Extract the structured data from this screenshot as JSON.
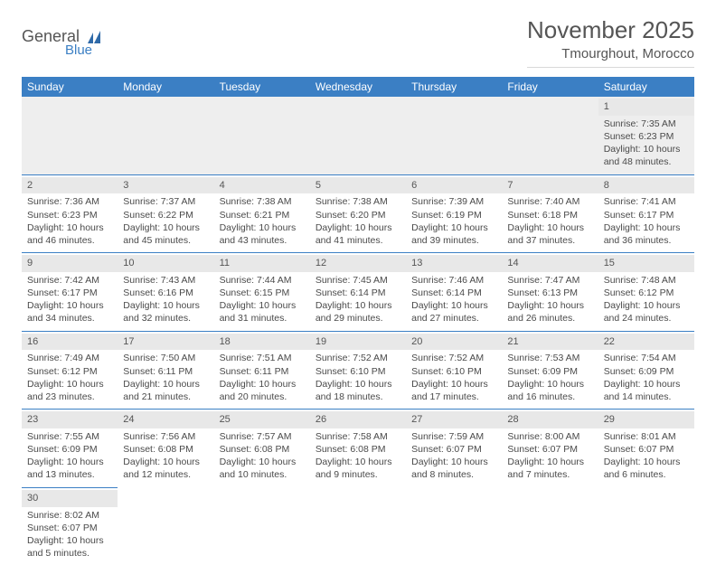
{
  "brand": {
    "word1": "General",
    "word2": "Blue"
  },
  "title": "November 2025",
  "location": "Tmourghout, Morocco",
  "colors": {
    "header_bg": "#3b7fc4",
    "daynum_bg": "#e8e8e8",
    "text": "#4a4a4a"
  },
  "weekdays": [
    "Sunday",
    "Monday",
    "Tuesday",
    "Wednesday",
    "Thursday",
    "Friday",
    "Saturday"
  ],
  "weeks": [
    [
      null,
      null,
      null,
      null,
      null,
      null,
      {
        "n": "1",
        "sunrise": "Sunrise: 7:35 AM",
        "sunset": "Sunset: 6:23 PM",
        "day1": "Daylight: 10 hours",
        "day2": "and 48 minutes."
      }
    ],
    [
      {
        "n": "2",
        "sunrise": "Sunrise: 7:36 AM",
        "sunset": "Sunset: 6:23 PM",
        "day1": "Daylight: 10 hours",
        "day2": "and 46 minutes."
      },
      {
        "n": "3",
        "sunrise": "Sunrise: 7:37 AM",
        "sunset": "Sunset: 6:22 PM",
        "day1": "Daylight: 10 hours",
        "day2": "and 45 minutes."
      },
      {
        "n": "4",
        "sunrise": "Sunrise: 7:38 AM",
        "sunset": "Sunset: 6:21 PM",
        "day1": "Daylight: 10 hours",
        "day2": "and 43 minutes."
      },
      {
        "n": "5",
        "sunrise": "Sunrise: 7:38 AM",
        "sunset": "Sunset: 6:20 PM",
        "day1": "Daylight: 10 hours",
        "day2": "and 41 minutes."
      },
      {
        "n": "6",
        "sunrise": "Sunrise: 7:39 AM",
        "sunset": "Sunset: 6:19 PM",
        "day1": "Daylight: 10 hours",
        "day2": "and 39 minutes."
      },
      {
        "n": "7",
        "sunrise": "Sunrise: 7:40 AM",
        "sunset": "Sunset: 6:18 PM",
        "day1": "Daylight: 10 hours",
        "day2": "and 37 minutes."
      },
      {
        "n": "8",
        "sunrise": "Sunrise: 7:41 AM",
        "sunset": "Sunset: 6:17 PM",
        "day1": "Daylight: 10 hours",
        "day2": "and 36 minutes."
      }
    ],
    [
      {
        "n": "9",
        "sunrise": "Sunrise: 7:42 AM",
        "sunset": "Sunset: 6:17 PM",
        "day1": "Daylight: 10 hours",
        "day2": "and 34 minutes."
      },
      {
        "n": "10",
        "sunrise": "Sunrise: 7:43 AM",
        "sunset": "Sunset: 6:16 PM",
        "day1": "Daylight: 10 hours",
        "day2": "and 32 minutes."
      },
      {
        "n": "11",
        "sunrise": "Sunrise: 7:44 AM",
        "sunset": "Sunset: 6:15 PM",
        "day1": "Daylight: 10 hours",
        "day2": "and 31 minutes."
      },
      {
        "n": "12",
        "sunrise": "Sunrise: 7:45 AM",
        "sunset": "Sunset: 6:14 PM",
        "day1": "Daylight: 10 hours",
        "day2": "and 29 minutes."
      },
      {
        "n": "13",
        "sunrise": "Sunrise: 7:46 AM",
        "sunset": "Sunset: 6:14 PM",
        "day1": "Daylight: 10 hours",
        "day2": "and 27 minutes."
      },
      {
        "n": "14",
        "sunrise": "Sunrise: 7:47 AM",
        "sunset": "Sunset: 6:13 PM",
        "day1": "Daylight: 10 hours",
        "day2": "and 26 minutes."
      },
      {
        "n": "15",
        "sunrise": "Sunrise: 7:48 AM",
        "sunset": "Sunset: 6:12 PM",
        "day1": "Daylight: 10 hours",
        "day2": "and 24 minutes."
      }
    ],
    [
      {
        "n": "16",
        "sunrise": "Sunrise: 7:49 AM",
        "sunset": "Sunset: 6:12 PM",
        "day1": "Daylight: 10 hours",
        "day2": "and 23 minutes."
      },
      {
        "n": "17",
        "sunrise": "Sunrise: 7:50 AM",
        "sunset": "Sunset: 6:11 PM",
        "day1": "Daylight: 10 hours",
        "day2": "and 21 minutes."
      },
      {
        "n": "18",
        "sunrise": "Sunrise: 7:51 AM",
        "sunset": "Sunset: 6:11 PM",
        "day1": "Daylight: 10 hours",
        "day2": "and 20 minutes."
      },
      {
        "n": "19",
        "sunrise": "Sunrise: 7:52 AM",
        "sunset": "Sunset: 6:10 PM",
        "day1": "Daylight: 10 hours",
        "day2": "and 18 minutes."
      },
      {
        "n": "20",
        "sunrise": "Sunrise: 7:52 AM",
        "sunset": "Sunset: 6:10 PM",
        "day1": "Daylight: 10 hours",
        "day2": "and 17 minutes."
      },
      {
        "n": "21",
        "sunrise": "Sunrise: 7:53 AM",
        "sunset": "Sunset: 6:09 PM",
        "day1": "Daylight: 10 hours",
        "day2": "and 16 minutes."
      },
      {
        "n": "22",
        "sunrise": "Sunrise: 7:54 AM",
        "sunset": "Sunset: 6:09 PM",
        "day1": "Daylight: 10 hours",
        "day2": "and 14 minutes."
      }
    ],
    [
      {
        "n": "23",
        "sunrise": "Sunrise: 7:55 AM",
        "sunset": "Sunset: 6:09 PM",
        "day1": "Daylight: 10 hours",
        "day2": "and 13 minutes."
      },
      {
        "n": "24",
        "sunrise": "Sunrise: 7:56 AM",
        "sunset": "Sunset: 6:08 PM",
        "day1": "Daylight: 10 hours",
        "day2": "and 12 minutes."
      },
      {
        "n": "25",
        "sunrise": "Sunrise: 7:57 AM",
        "sunset": "Sunset: 6:08 PM",
        "day1": "Daylight: 10 hours",
        "day2": "and 10 minutes."
      },
      {
        "n": "26",
        "sunrise": "Sunrise: 7:58 AM",
        "sunset": "Sunset: 6:08 PM",
        "day1": "Daylight: 10 hours",
        "day2": "and 9 minutes."
      },
      {
        "n": "27",
        "sunrise": "Sunrise: 7:59 AM",
        "sunset": "Sunset: 6:07 PM",
        "day1": "Daylight: 10 hours",
        "day2": "and 8 minutes."
      },
      {
        "n": "28",
        "sunrise": "Sunrise: 8:00 AM",
        "sunset": "Sunset: 6:07 PM",
        "day1": "Daylight: 10 hours",
        "day2": "and 7 minutes."
      },
      {
        "n": "29",
        "sunrise": "Sunrise: 8:01 AM",
        "sunset": "Sunset: 6:07 PM",
        "day1": "Daylight: 10 hours",
        "day2": "and 6 minutes."
      }
    ],
    [
      {
        "n": "30",
        "sunrise": "Sunrise: 8:02 AM",
        "sunset": "Sunset: 6:07 PM",
        "day1": "Daylight: 10 hours",
        "day2": "and 5 minutes."
      },
      null,
      null,
      null,
      null,
      null,
      null
    ]
  ]
}
